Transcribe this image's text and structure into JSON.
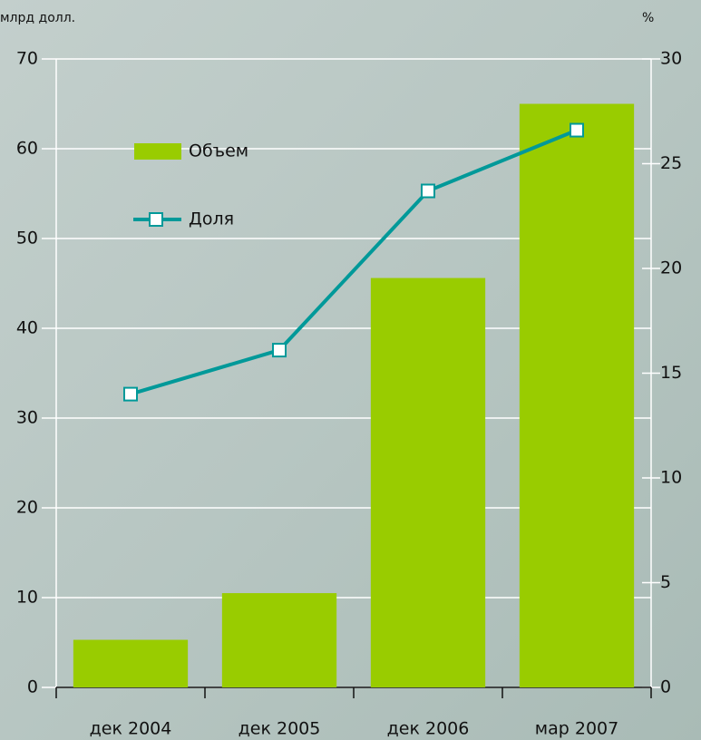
{
  "chart_data": {
    "type": "bar",
    "y_label": "млрд долл.",
    "y2_label": "%",
    "categories": [
      "дек 2004",
      "дек 2005",
      "дек 2006",
      "мар 2007"
    ],
    "series": [
      {
        "name": "Объем",
        "color": "#99cc00",
        "type": "bar",
        "values": [
          5.3,
          10.5,
          45.6,
          65
        ]
      },
      {
        "name": "Доля",
        "color": "#009999",
        "type": "line",
        "axis": "y2",
        "values": [
          14.0,
          16.1,
          23.7,
          26.6
        ]
      }
    ],
    "ylim": [
      0,
      70
    ],
    "yticks": [
      0,
      10,
      20,
      30,
      40,
      50,
      60,
      70
    ],
    "y2lim": [
      0,
      30
    ],
    "y2ticks": [
      0,
      5,
      10,
      15,
      20,
      25,
      30
    ],
    "grid": true,
    "legend": "upper left"
  }
}
